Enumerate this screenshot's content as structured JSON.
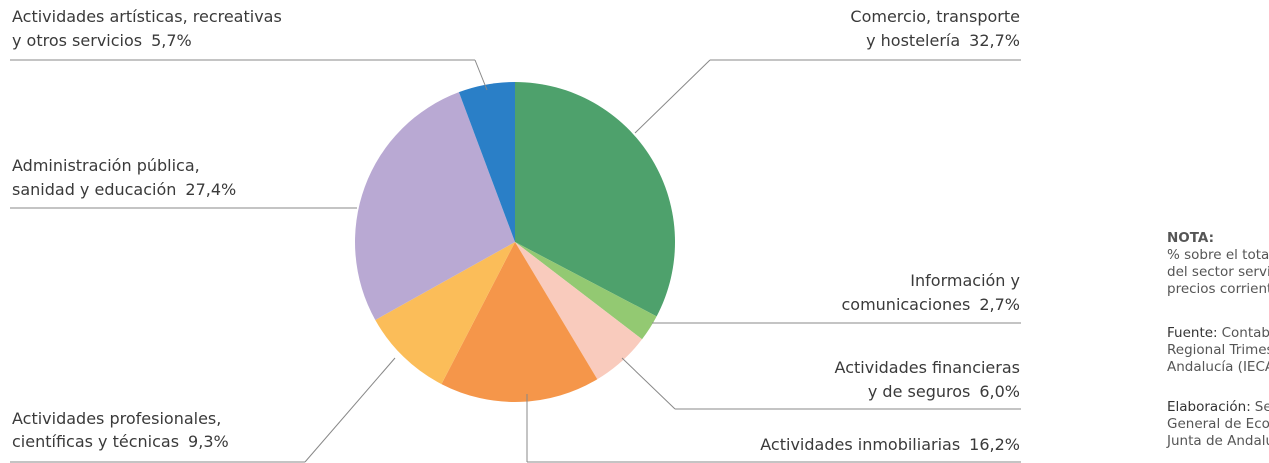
{
  "chart_data": {
    "type": "pie",
    "categories": [
      [
        "Comercio, transporte",
        "y hostelería"
      ],
      [
        "Información y",
        "comunicaciones"
      ],
      [
        "Actividades financieras",
        "y de seguros"
      ],
      [
        "Actividades inmobiliarias"
      ],
      [
        "Actividades profesionales,",
        "científicas y técnicas"
      ],
      [
        "Administración pública,",
        "sanidad y educación"
      ],
      [
        "Actividades artísticas, recreativas",
        "y otros servicios"
      ]
    ],
    "values": [
      32.7,
      2.7,
      6.0,
      16.2,
      9.3,
      27.4,
      5.7
    ],
    "value_labels": [
      "32,7%",
      "2,7%",
      "6,0%",
      "16,2%",
      "9,3%",
      "27,4%",
      "5,7%"
    ],
    "colors": [
      "#4ea16c",
      "#93c972",
      "#f9cbbd",
      "#f5964a",
      "#fbbd59",
      "#b9a9d3",
      "#2a7fc7"
    ]
  },
  "notes": [
    {
      "label": "NOTA:",
      "lines": [
        "% sobre el total del VAB",
        "del sector servicios a",
        "precios corrientes."
      ]
    },
    {
      "label": "Fuente:",
      "lines": [
        "Contabilidad",
        "Regional Trimestral de",
        "Andalucía (IECA)."
      ]
    },
    {
      "label": "Elaboración:",
      "lines": [
        "Secretaría",
        "General de Economía.",
        "Junta de Andalucía."
      ]
    }
  ]
}
